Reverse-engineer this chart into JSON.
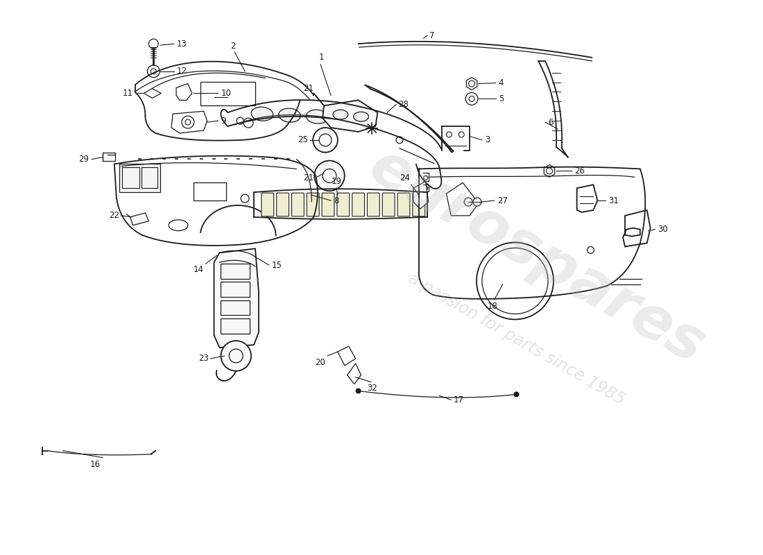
{
  "background_color": "#ffffff",
  "line_color": "#1a1a1a",
  "watermark_text": "eurospares",
  "watermark_sub": "a passion for parts since 1985",
  "fig_width": 11.0,
  "fig_height": 8.0
}
